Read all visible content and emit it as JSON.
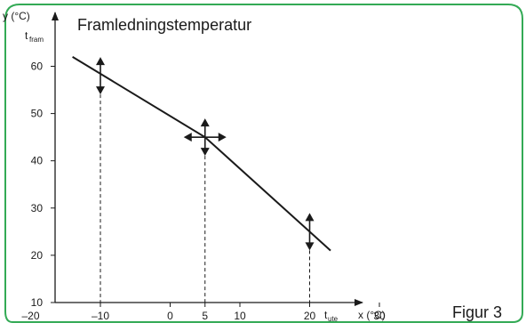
{
  "title": "Framledningstemperatur",
  "caption": "Figur 3",
  "colors": {
    "frame": "#33aa55",
    "caption": "#33aa55",
    "ink": "#1a1a1a"
  },
  "chart_data": {
    "type": "line",
    "title": "Framledningstemperatur",
    "x_axis": {
      "label": "x (°C)",
      "symbol": "t",
      "symbol_subscript": "ute",
      "ticks": [
        -20,
        -10,
        0,
        5,
        10,
        20,
        30
      ],
      "range": [
        -20,
        35
      ]
    },
    "y_axis": {
      "label": "y (°C)",
      "symbol": "t",
      "symbol_subscript": "fram",
      "ticks": [
        10,
        20,
        30,
        40,
        50,
        60
      ],
      "range": [
        10,
        66
      ]
    },
    "series": [
      {
        "points": [
          {
            "x": -14,
            "y": 62
          },
          {
            "x": 5,
            "y": 45
          },
          {
            "x": 23,
            "y": 21
          }
        ]
      }
    ],
    "adjustment_points": [
      {
        "x": -10,
        "y": 58,
        "arrows": "vertical"
      },
      {
        "x": 5,
        "y": 45,
        "arrows": "both"
      },
      {
        "x": 20,
        "y": 25,
        "arrows": "vertical"
      }
    ],
    "grid": false
  }
}
